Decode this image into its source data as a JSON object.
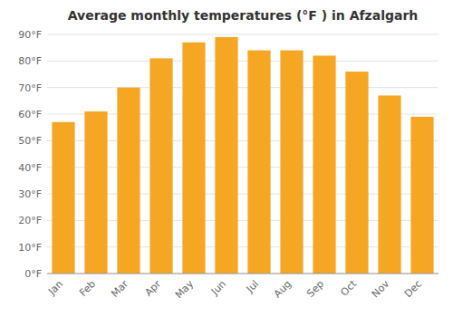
{
  "chart_data": {
    "type": "bar",
    "title": "Average monthly temperatures (°F ) in Afzalgarh",
    "categories": [
      "Jan",
      "Feb",
      "Mar",
      "Apr",
      "May",
      "Jun",
      "Jul",
      "Aug",
      "Sep",
      "Oct",
      "Nov",
      "Dec"
    ],
    "values": [
      57,
      61,
      70,
      81,
      87,
      89,
      84,
      84,
      82,
      76,
      67,
      59
    ],
    "color": "#F5A623",
    "ylim": [
      0,
      90
    ],
    "yticks": [
      {
        "value": 0,
        "label": "0°F"
      },
      {
        "value": 10,
        "label": "10°F"
      },
      {
        "value": 20,
        "label": "20°F"
      },
      {
        "value": 30,
        "label": "30°F"
      },
      {
        "value": 40,
        "label": "40°F"
      },
      {
        "value": 50,
        "label": "50°F"
      },
      {
        "value": 60,
        "label": "60°F"
      },
      {
        "value": 70,
        "label": "70°F"
      },
      {
        "value": 80,
        "label": "80°F"
      },
      {
        "value": 90,
        "label": "90°F"
      }
    ],
    "grid": true
  }
}
